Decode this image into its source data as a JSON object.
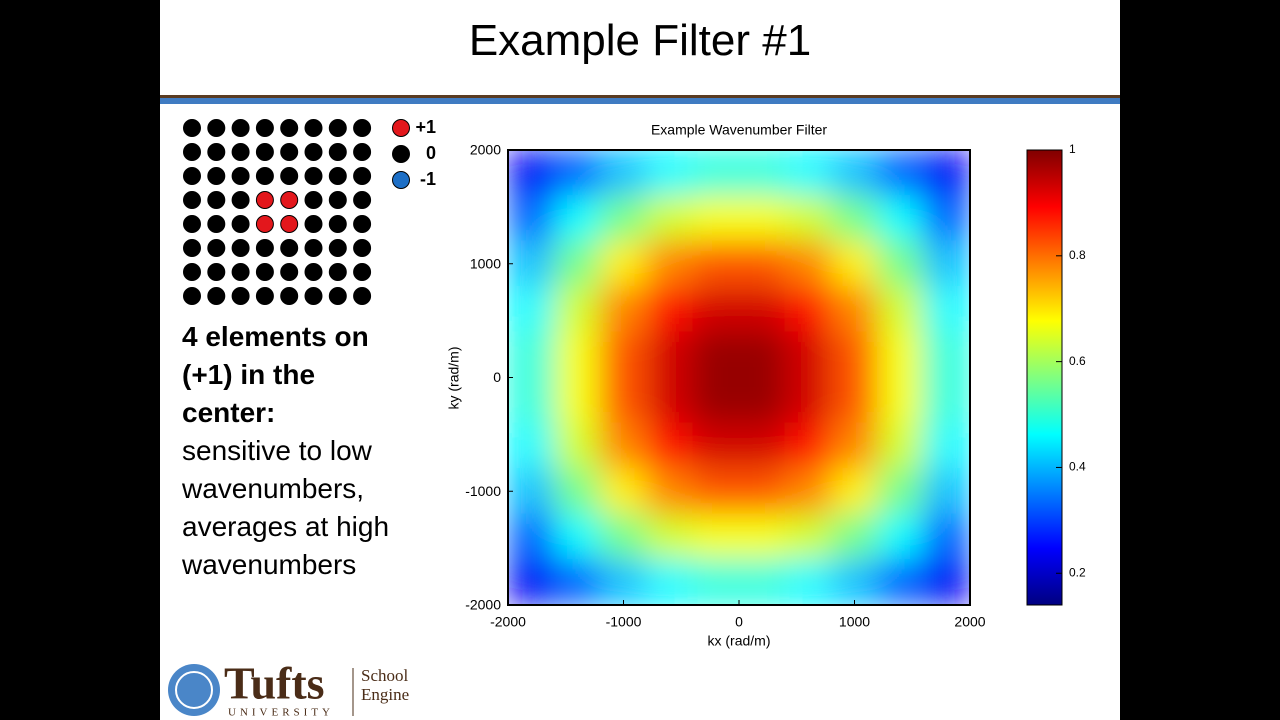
{
  "slide": {
    "title": "Example Filter #1"
  },
  "elements": {
    "weights": [
      [
        0,
        0,
        0,
        0,
        0,
        0,
        0,
        0
      ],
      [
        0,
        0,
        0,
        0,
        0,
        0,
        0,
        0
      ],
      [
        0,
        0,
        0,
        0,
        0,
        0,
        0,
        0
      ],
      [
        0,
        0,
        0,
        1,
        1,
        0,
        0,
        0
      ],
      [
        0,
        0,
        0,
        1,
        1,
        0,
        0,
        0
      ],
      [
        0,
        0,
        0,
        0,
        0,
        0,
        0,
        0
      ],
      [
        0,
        0,
        0,
        0,
        0,
        0,
        0,
        0
      ],
      [
        0,
        0,
        0,
        0,
        0,
        0,
        0,
        0
      ]
    ],
    "legend": [
      {
        "value": 1,
        "label": "+1",
        "color": "#e3171c"
      },
      {
        "value": 0,
        "label": "0",
        "color": "#000000"
      },
      {
        "value": -1,
        "label": "-1",
        "color": "#1d6fc6"
      }
    ]
  },
  "description": {
    "bold": "4 elements on (+1) in the center:",
    "text": "sensitive to low wavenumbers, averages at high wavenumbers"
  },
  "chart_data": {
    "type": "heatmap",
    "title": "Example Wavenumber Filter",
    "x_label": "kx (rad/m)",
    "y_label": "ky (rad/m)",
    "xlim": [
      -2000,
      2000
    ],
    "ylim": [
      -2000,
      2000
    ],
    "xticks": [
      -2000,
      -1000,
      0,
      1000,
      2000
    ],
    "yticks": [
      -2000,
      -1000,
      0,
      1000,
      2000
    ],
    "zlim": [
      0.14,
      1
    ],
    "zticks": [
      0.2,
      0.4,
      0.6,
      0.8,
      1
    ],
    "colormap": "jet",
    "z": [
      [
        0.24,
        0.33,
        0.41,
        0.46,
        0.49,
        0.49,
        0.46,
        0.41,
        0.33,
        0.24
      ],
      [
        0.33,
        0.46,
        0.56,
        0.64,
        0.67,
        0.67,
        0.64,
        0.56,
        0.46,
        0.33
      ],
      [
        0.41,
        0.56,
        0.69,
        0.78,
        0.82,
        0.82,
        0.78,
        0.69,
        0.56,
        0.41
      ],
      [
        0.46,
        0.64,
        0.78,
        0.88,
        0.93,
        0.93,
        0.88,
        0.78,
        0.64,
        0.46
      ],
      [
        0.49,
        0.67,
        0.82,
        0.93,
        0.98,
        0.98,
        0.93,
        0.82,
        0.67,
        0.49
      ],
      [
        0.49,
        0.67,
        0.82,
        0.93,
        0.98,
        0.98,
        0.93,
        0.82,
        0.67,
        0.49
      ],
      [
        0.46,
        0.64,
        0.78,
        0.88,
        0.93,
        0.93,
        0.88,
        0.78,
        0.64,
        0.46
      ],
      [
        0.41,
        0.56,
        0.69,
        0.78,
        0.82,
        0.82,
        0.78,
        0.69,
        0.56,
        0.41
      ],
      [
        0.33,
        0.46,
        0.56,
        0.64,
        0.67,
        0.67,
        0.64,
        0.56,
        0.46,
        0.33
      ],
      [
        0.24,
        0.33,
        0.41,
        0.46,
        0.49,
        0.49,
        0.46,
        0.41,
        0.33,
        0.24
      ]
    ]
  },
  "logo": {
    "name": "Tufts",
    "sub": "UNIVERSITY",
    "line1": "School",
    "line2": "Engine"
  }
}
